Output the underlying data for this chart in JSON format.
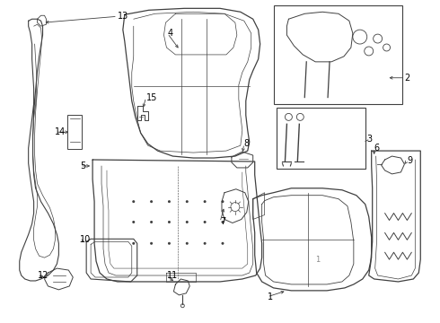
{
  "bg_color": "#ffffff",
  "line_color": "#404040",
  "label_color": "#000000",
  "lw_main": 0.8,
  "lw_inner": 0.55,
  "label_fontsize": 7.0
}
